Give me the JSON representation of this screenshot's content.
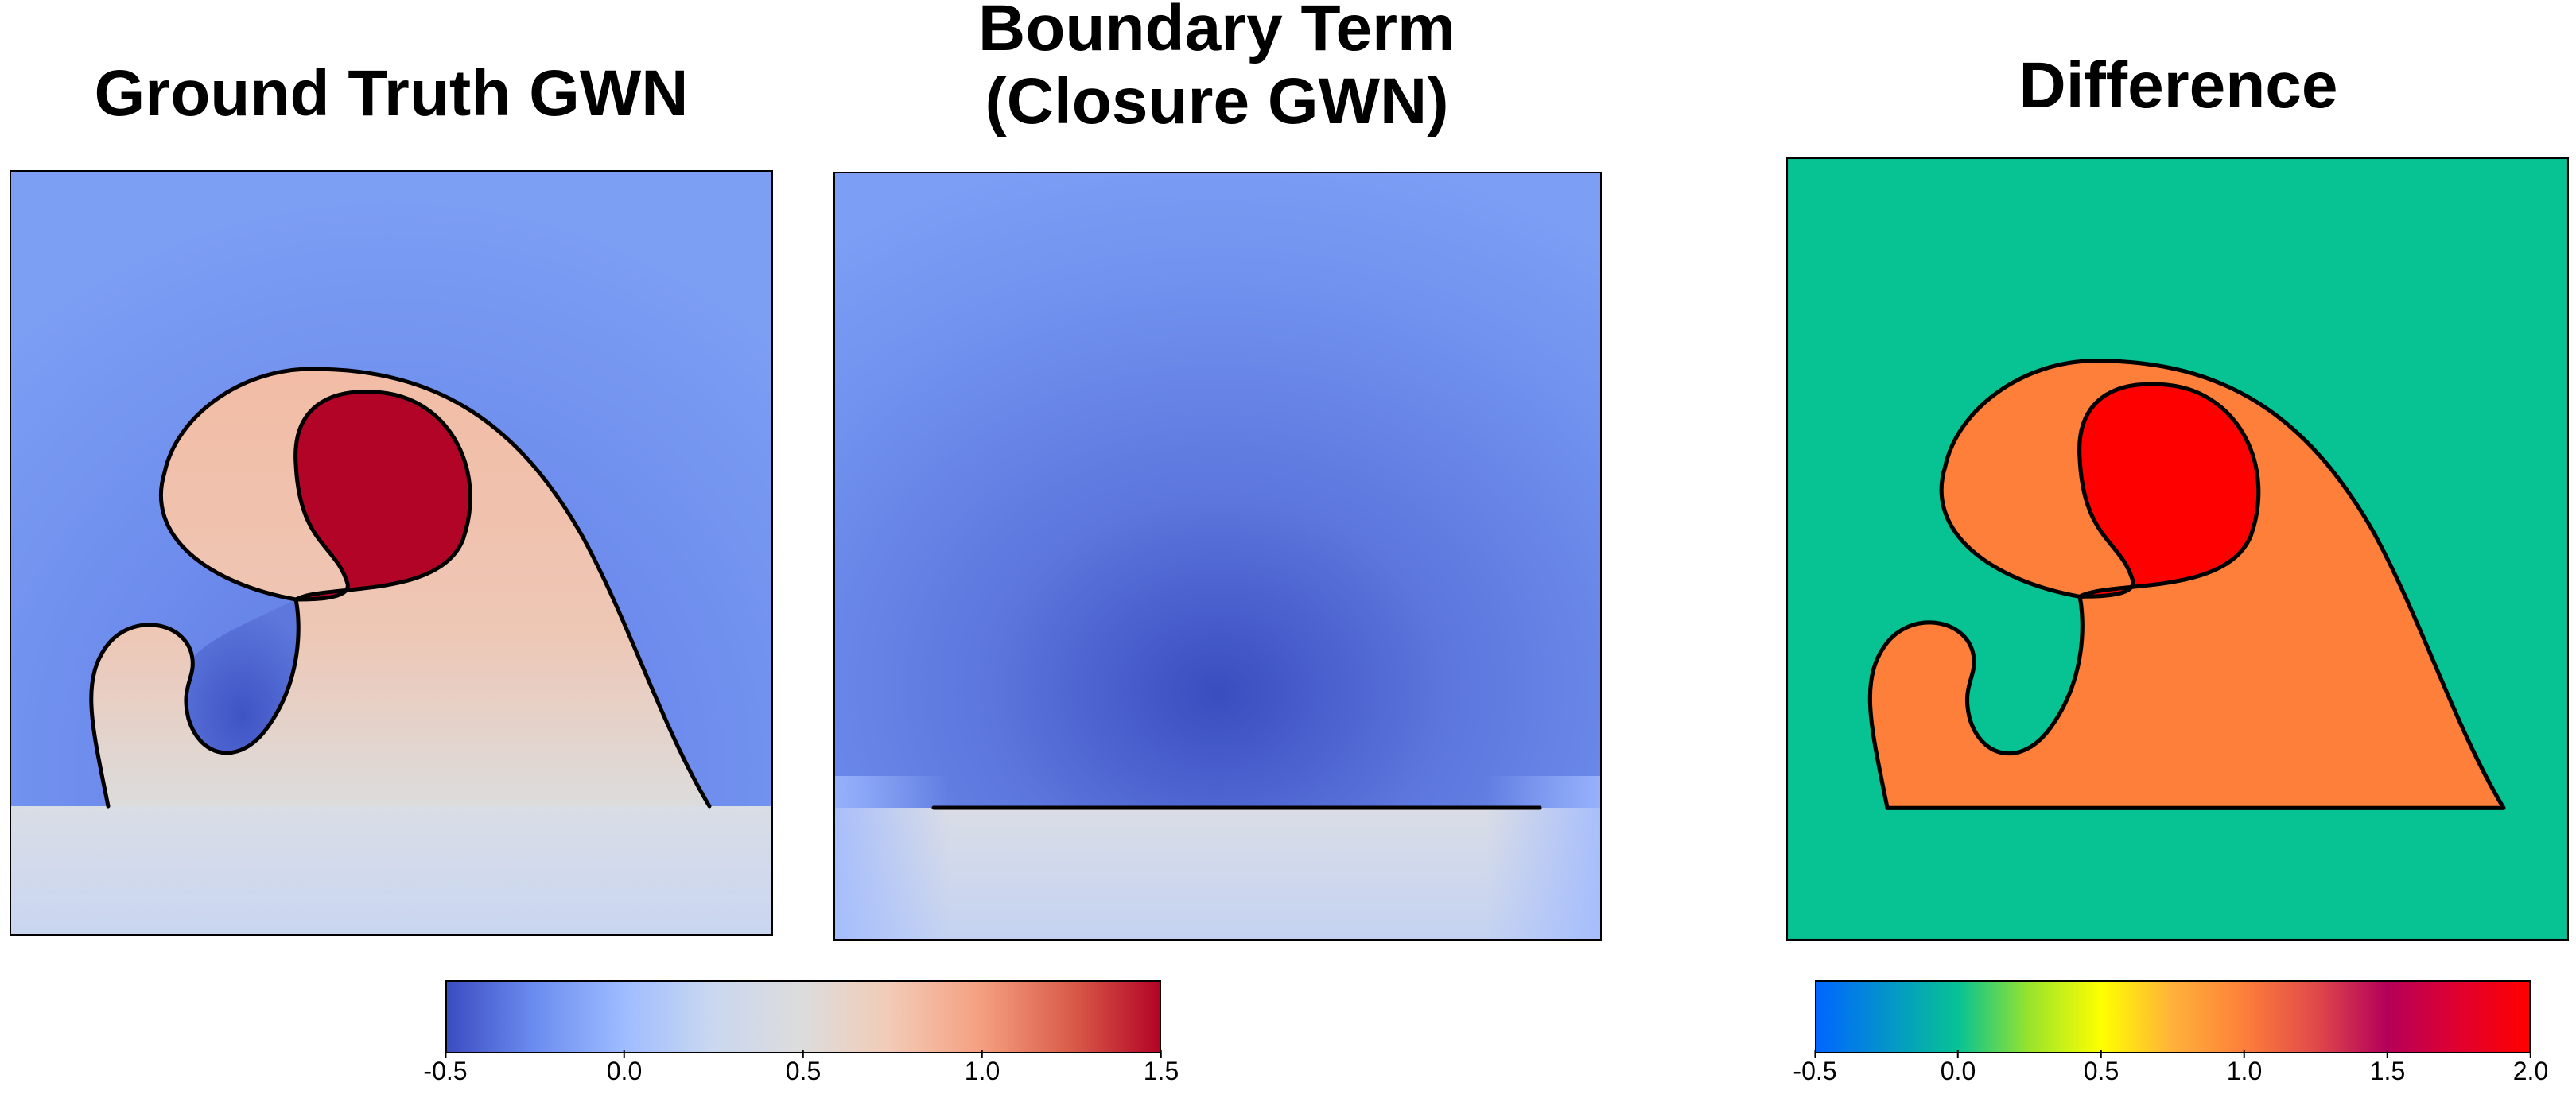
{
  "titles": {
    "ground_truth": "Ground Truth GWN",
    "boundary_line1": "Boundary Term",
    "boundary_line2": "(Closure GWN)",
    "difference": "Difference"
  },
  "colorbar_left": {
    "ticks": [
      "-0.5",
      "0.0",
      "0.5",
      "1.0",
      "1.5"
    ],
    "colormap": "coolwarm",
    "range": [
      -0.5,
      1.5
    ]
  },
  "colorbar_right": {
    "ticks": [
      "-0.5",
      "0.0",
      "0.5",
      "1.0",
      "1.5",
      "2.0"
    ],
    "colormap": "rainbow-like",
    "range": [
      -0.5,
      2.0
    ]
  },
  "colors": {
    "outside_blue": "#7b9bf0",
    "curve": "#000000",
    "diff_background": "#07c394",
    "diff_region1": "#fd7f3a",
    "diff_region2": "#fe0000"
  }
}
